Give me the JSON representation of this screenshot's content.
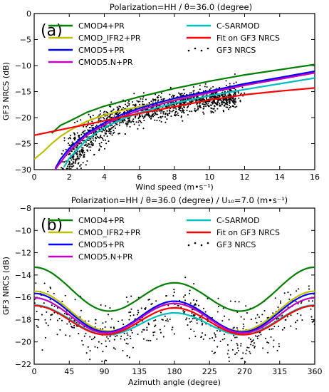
{
  "chart_data": [
    {
      "type": "line",
      "panel_label": "(a)",
      "title": "Polarization=HH / θ=36.0 (degree)",
      "xlabel": "Wind speed (m•s⁻¹)",
      "ylabel": "GF3 NRCS (dB)",
      "xlim": [
        0,
        16
      ],
      "ylim": [
        -30,
        0
      ],
      "xticks": [
        "0",
        "2",
        "4",
        "6",
        "8",
        "10",
        "12",
        "14",
        "16"
      ],
      "yticks": [
        "0",
        "−5",
        "−10",
        "−15",
        "−20",
        "−25",
        "−30"
      ],
      "legend_position": "top",
      "series": [
        {
          "name": "CMOD4+PR",
          "color": "#007f00",
          "x": [
            1,
            1.5,
            2,
            3,
            4,
            5,
            6,
            7,
            8,
            10,
            12,
            14,
            16
          ],
          "y": [
            -23,
            -21.5,
            -20.7,
            -19,
            -17.8,
            -16.9,
            -16,
            -15.2,
            -14.4,
            -13,
            -11.8,
            -10.8,
            -9.8
          ]
        },
        {
          "name": "CMOD_IFR2+PR",
          "color": "#bfbf00",
          "x": [
            0,
            0.5,
            1,
            1.5,
            2,
            3,
            4,
            5,
            6,
            7,
            8,
            10,
            12,
            14,
            16
          ],
          "y": [
            -28,
            -26.6,
            -25,
            -23.6,
            -22.5,
            -20.7,
            -19.5,
            -18.6,
            -17.9,
            -17.2,
            -16.6,
            -15,
            -13.7,
            -12.5,
            -11.2
          ]
        },
        {
          "name": "CMOD5+PR",
          "color": "#0000ff",
          "x": [
            1.2,
            1.5,
            2,
            3,
            4,
            5,
            6,
            7,
            8,
            10,
            12,
            14,
            16
          ],
          "y": [
            -29.8,
            -28,
            -25.9,
            -23,
            -21,
            -19.4,
            -18.2,
            -17.2,
            -16.3,
            -14.9,
            -13.5,
            -12.3,
            -11.1
          ]
        },
        {
          "name": "CMOD5.N+PR",
          "color": "#bf00bf",
          "x": [
            1.2,
            1.5,
            2,
            3,
            4,
            5,
            6,
            7,
            8,
            10,
            12,
            14,
            16
          ],
          "y": [
            -30,
            -28.6,
            -26.4,
            -23.4,
            -21.4,
            -19.8,
            -18.6,
            -17.6,
            -16.7,
            -15.2,
            -13.8,
            -12.6,
            -11.4
          ]
        },
        {
          "name": "C-SARMOD",
          "color": "#00bfbf",
          "x": [
            1.7,
            2,
            3,
            4,
            5,
            6,
            7,
            8,
            10,
            12,
            14,
            16
          ],
          "y": [
            -29.5,
            -27.8,
            -24.2,
            -21.9,
            -20.3,
            -19.1,
            -18.1,
            -17.2,
            -15.8,
            -14.6,
            -13.5,
            -12.4
          ]
        },
        {
          "name": "Fit on GF3 NRCS",
          "color": "#ff0000",
          "x": [
            0,
            2,
            4,
            6,
            8,
            10,
            12,
            14,
            16
          ],
          "y": [
            -23.4,
            -22,
            -20.6,
            -19.2,
            -17.9,
            -16.6,
            -15.6,
            -14.9,
            -14.3
          ]
        }
      ],
      "scatter": {
        "name": "GF3 NRCS",
        "color": "#000000",
        "description_range_x": [
          1.5,
          12
        ],
        "description_range_y": [
          -30,
          -8
        ]
      }
    },
    {
      "type": "line",
      "panel_label": "(b)",
      "title": "Polarization=HH / θ=36.0 (degree) / U₁₀=7.0 (m•s⁻¹)",
      "xlabel": "Azimuth angle (degree)",
      "ylabel": "GF3 NRCS (dB)",
      "xlim": [
        0,
        360
      ],
      "ylim": [
        -22,
        -8
      ],
      "xticks": [
        "0",
        "45",
        "90",
        "135",
        "180",
        "225",
        "270",
        "315",
        "360"
      ],
      "yticks": [
        "−8",
        "−10",
        "−12",
        "−14",
        "−16",
        "−18",
        "−20",
        "−22"
      ],
      "legend_position": "top",
      "series": [
        {
          "name": "CMOD4+PR",
          "color": "#007f00",
          "model": {
            "a0": -15.6,
            "a1": 0.7,
            "a2": 1.6
          }
        },
        {
          "name": "CMOD_IFR2+PR",
          "color": "#bfbf00",
          "model": {
            "a0": -17.5,
            "a1": 0.55,
            "a2": 1.5
          }
        },
        {
          "name": "CMOD5+PR",
          "color": "#0000ff",
          "model": {
            "a0": -17.55,
            "a1": 0.35,
            "a2": 1.55
          }
        },
        {
          "name": "CMOD5.N+PR",
          "color": "#bf00bf",
          "model": {
            "a0": -17.75,
            "a1": 0.25,
            "a2": 1.45
          }
        },
        {
          "name": "C-SARMOD",
          "color": "#00bfbf",
          "model": {
            "a0": -18.2,
            "a1": 0.35,
            "a2": 1.15
          }
        },
        {
          "name": "Fit on GF3 NRCS",
          "color": "#ff0000",
          "model": {
            "a0": -18.1,
            "a1": 0.1,
            "a2": 1.25
          }
        }
      ],
      "scatter": {
        "name": "GF3 NRCS",
        "color": "#000000"
      }
    }
  ]
}
